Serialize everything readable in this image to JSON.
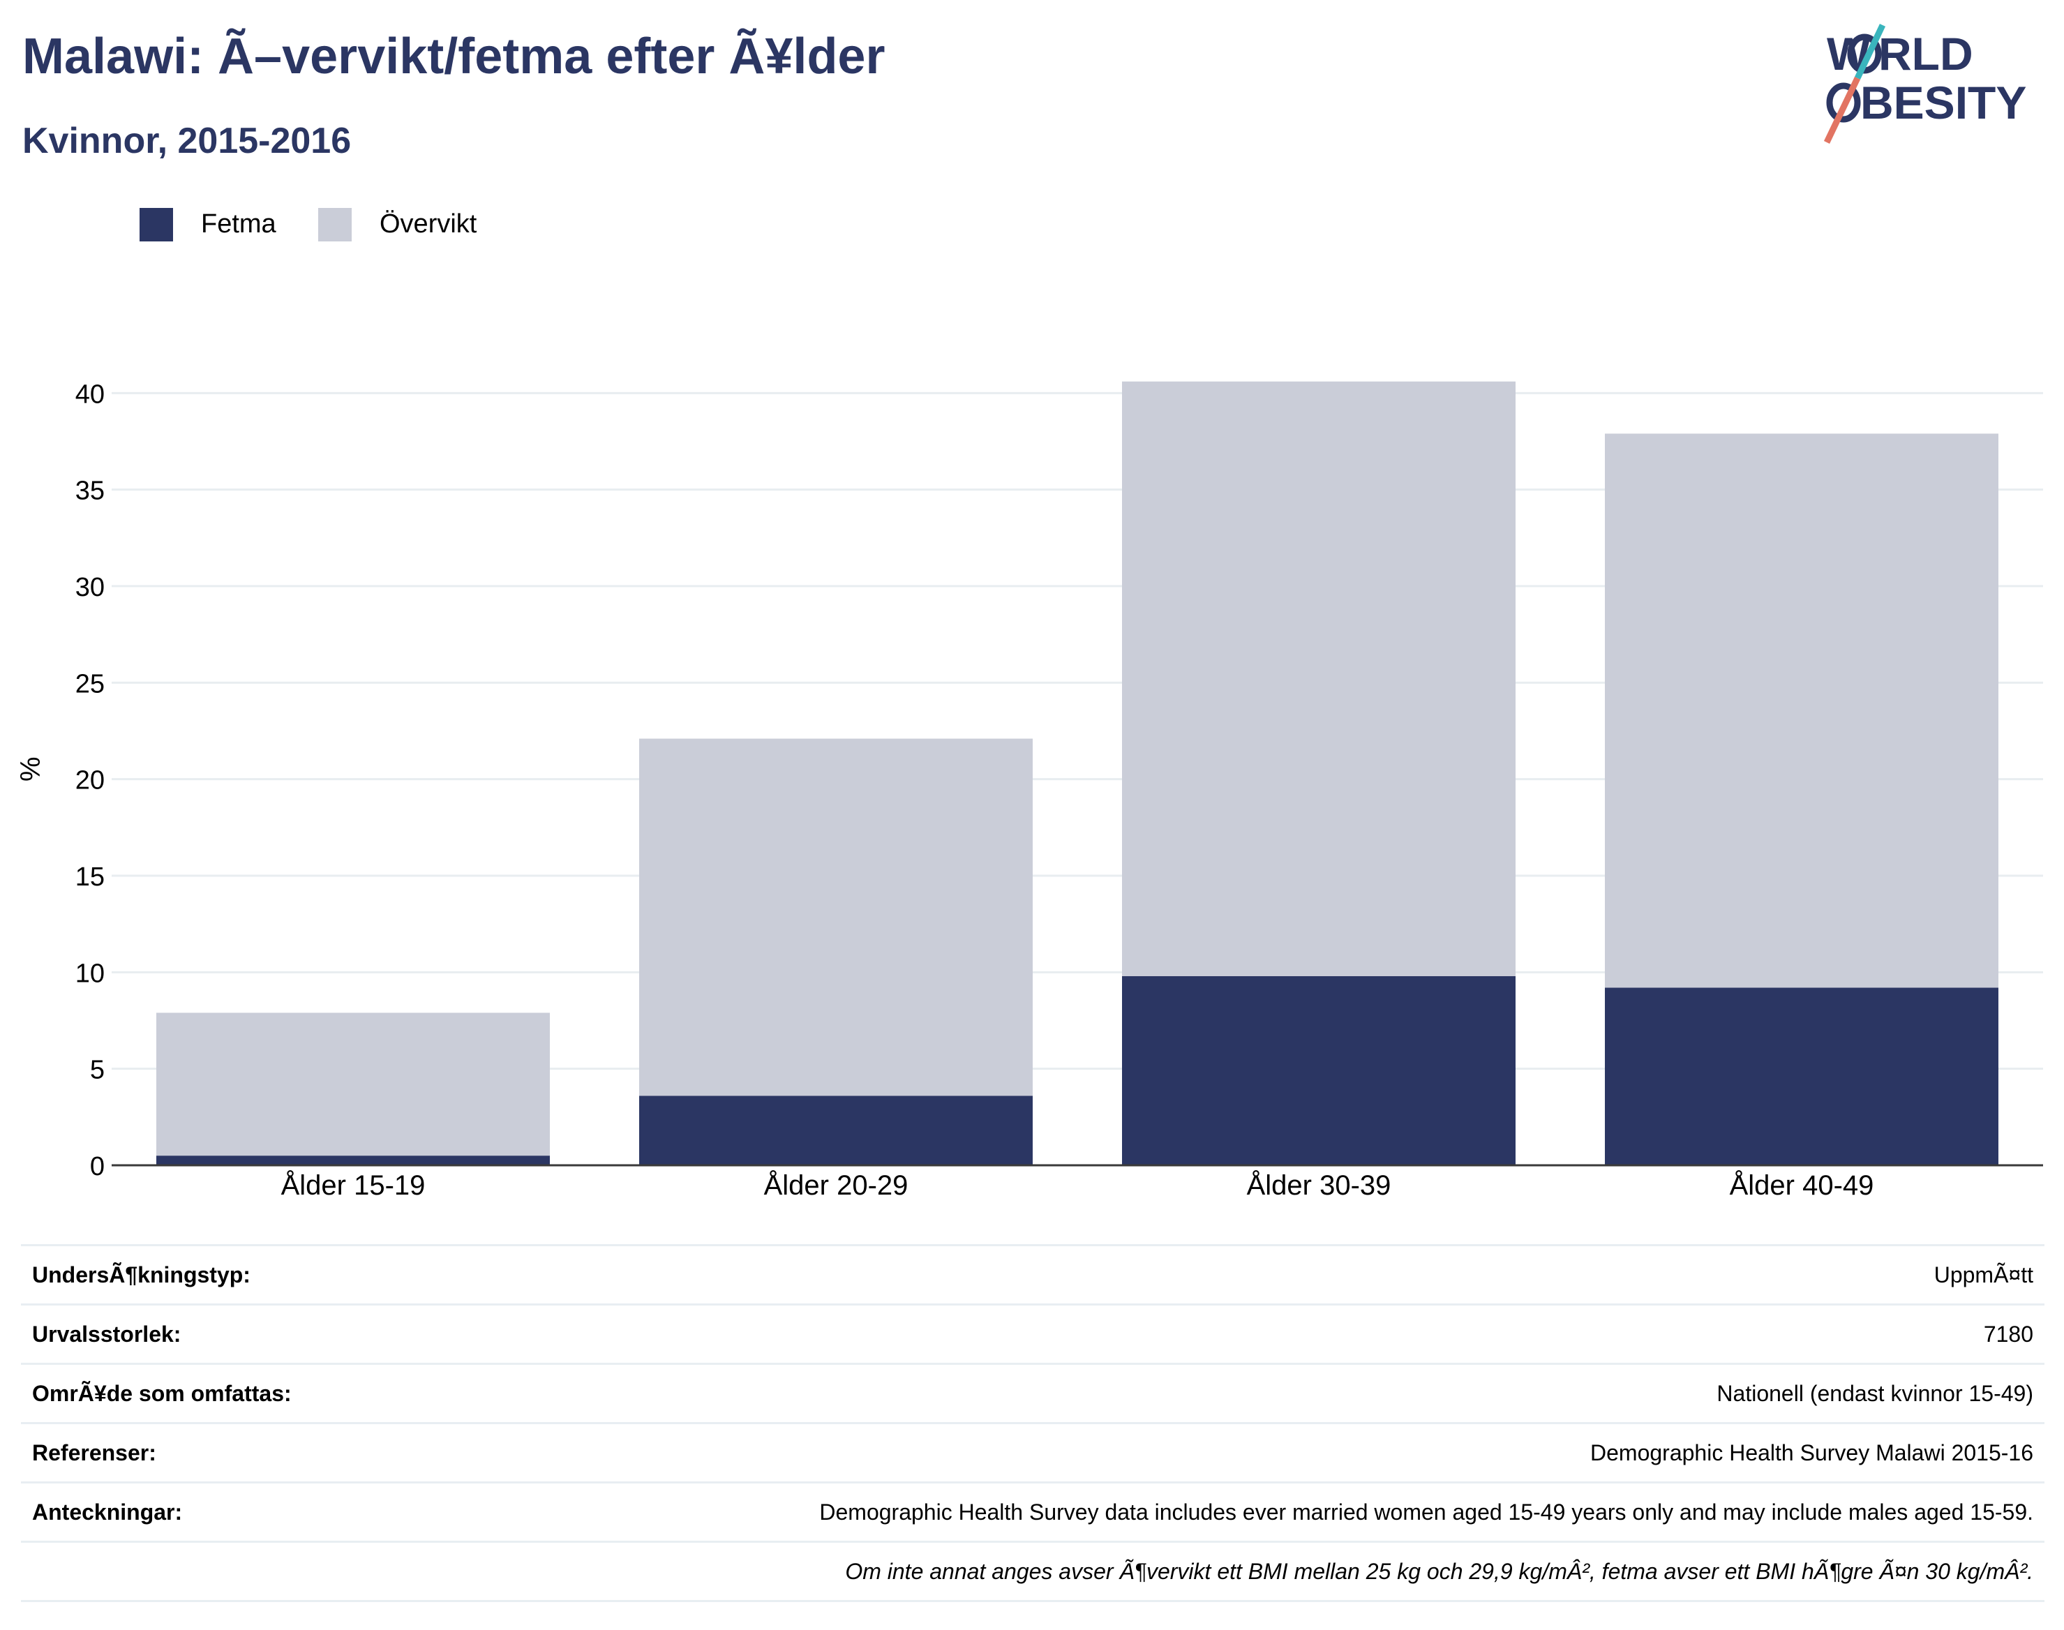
{
  "header": {
    "title": "Malawi: Ã–vervikt/fetma efter Ã¥lder",
    "subtitle": "Kvinnor, 2015-2016",
    "logo_text": "WORLD OBESITY"
  },
  "legend": {
    "items": [
      {
        "label": "Fetma",
        "color": "#2b3663"
      },
      {
        "label": "Övervikt",
        "color": "#cacdd8"
      }
    ]
  },
  "chart_data": {
    "type": "bar",
    "stacked": true,
    "categories": [
      "Ålder 15-19",
      "Ålder 20-29",
      "Ålder 30-39",
      "Ålder 40-49"
    ],
    "series": [
      {
        "name": "Fetma",
        "color": "#2b3663",
        "values": [
          0.5,
          3.6,
          9.8,
          9.2
        ]
      },
      {
        "name": "Övervikt",
        "color": "#cacdd8",
        "values": [
          7.4,
          18.5,
          30.8,
          28.7
        ]
      }
    ],
    "ylabel": "%",
    "ylim": [
      0,
      42
    ],
    "yticks": [
      0,
      5,
      10,
      15,
      20,
      25,
      30,
      35,
      40
    ],
    "grid": true,
    "legend_position": "top-left"
  },
  "info": {
    "rows": [
      {
        "key": "UndersÃ¶kningstyp:",
        "value": "UppmÃ¤tt"
      },
      {
        "key": "Urvalsstorlek:",
        "value": "7180"
      },
      {
        "key": "OmrÃ¥de som omfattas:",
        "value": "Nationell (endast kvinnor 15-49)"
      },
      {
        "key": "Referenser:",
        "value": "Demographic Health Survey Malawi 2015-16"
      },
      {
        "key": "Anteckningar:",
        "value": "Demographic Health Survey data includes ever married women aged 15-49 years only and may include males aged 15-59."
      }
    ],
    "footnote": "Om inte annat anges avser Ã¶vervikt ett BMI mellan 25 kg och 29,9 kg/mÂ², fetma avser ett BMI hÃ¶gre Ã¤n 30 kg/mÂ²."
  }
}
